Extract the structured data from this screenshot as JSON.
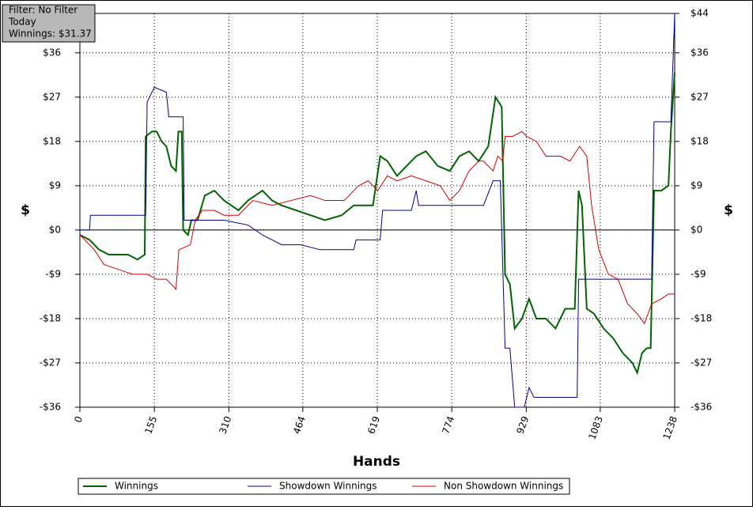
{
  "info_box": {
    "lines": [
      "Filter: No Filter",
      "Today",
      "Winnings: $31.37"
    ]
  },
  "chart_data": {
    "type": "line",
    "xlabel": "Hands",
    "ylabel": "$",
    "y2label": "$",
    "xlim": [
      0,
      1238
    ],
    "xticks": [
      0,
      155,
      310,
      464,
      619,
      774,
      929,
      1083,
      1238
    ],
    "ylim": [
      -36,
      44
    ],
    "yticks": [
      {
        "value": -36,
        "label": "-$36"
      },
      {
        "value": -27,
        "label": "-$27"
      },
      {
        "value": -18,
        "label": "-$18"
      },
      {
        "value": -9,
        "label": "-$9"
      },
      {
        "value": 0,
        "label": "$0"
      },
      {
        "value": 9,
        "label": "$9"
      },
      {
        "value": 18,
        "label": "$18"
      },
      {
        "value": 27,
        "label": "$27"
      },
      {
        "value": 36,
        "label": "$36"
      },
      {
        "value": 44,
        "label": "$44"
      }
    ],
    "grid": true,
    "legend": "bottom",
    "series": [
      {
        "name": "Winnings",
        "color": "#006400",
        "width": 2,
        "x": [
          0,
          20,
          40,
          60,
          80,
          100,
          120,
          135,
          137,
          150,
          160,
          170,
          180,
          190,
          200,
          205,
          212,
          215,
          225,
          232,
          245,
          260,
          280,
          300,
          330,
          350,
          380,
          400,
          420,
          450,
          480,
          510,
          545,
          570,
          590,
          610,
          625,
          640,
          660,
          680,
          700,
          720,
          745,
          770,
          790,
          810,
          830,
          850,
          865,
          878,
          885,
          895,
          905,
          920,
          935,
          950,
          970,
          990,
          1010,
          1030,
          1038,
          1045,
          1055,
          1070,
          1090,
          1110,
          1130,
          1150,
          1160,
          1170,
          1180,
          1188,
          1195,
          1210,
          1225,
          1230,
          1238
        ],
        "values": [
          -1,
          -2,
          -4,
          -5,
          -5,
          -5,
          -6,
          -5,
          19,
          20,
          20,
          18,
          17,
          13,
          12,
          20,
          20,
          0,
          -1,
          2,
          2,
          7,
          8,
          6,
          4,
          6,
          8,
          6,
          5,
          4,
          3,
          2,
          3,
          5,
          5,
          5,
          15,
          14,
          11,
          13,
          15,
          16,
          13,
          12,
          15,
          16,
          14,
          17,
          27,
          25,
          -9,
          -11,
          -20,
          -18,
          -14,
          -18,
          -18,
          -20,
          -16,
          -16,
          8,
          5,
          -16,
          -17,
          -20,
          -22,
          -25,
          -27,
          -29,
          -25,
          -24,
          -24,
          8,
          8,
          9,
          20,
          32
        ]
      },
      {
        "name": "Showdown Winnings",
        "color": "#00008b",
        "width": 1,
        "x": [
          0,
          20,
          22,
          137,
          140,
          155,
          180,
          185,
          215,
          217,
          260,
          300,
          350,
          380,
          420,
          460,
          500,
          540,
          570,
          575,
          625,
          630,
          690,
          700,
          705,
          840,
          860,
          875,
          885,
          895,
          905,
          925,
          935,
          945,
          1000,
          1035,
          1038,
          1190,
          1195,
          1230,
          1238
        ],
        "values": [
          0,
          0,
          3,
          3,
          26,
          29,
          28,
          23,
          23,
          2,
          2,
          2,
          1,
          -1,
          -3,
          -3,
          -4,
          -4,
          -4,
          -2,
          -2,
          4,
          4,
          8,
          5,
          5,
          10,
          10,
          -24,
          -24,
          -36,
          -36,
          -32,
          -34,
          -34,
          -34,
          -10,
          -10,
          22,
          22,
          44
        ]
      },
      {
        "name": "Non Showdown Winnings",
        "color": "#d00000",
        "width": 1,
        "x": [
          0,
          30,
          50,
          80,
          110,
          140,
          160,
          180,
          200,
          206,
          230,
          240,
          255,
          280,
          300,
          330,
          360,
          400,
          440,
          480,
          510,
          550,
          580,
          600,
          620,
          640,
          660,
          690,
          720,
          750,
          770,
          790,
          810,
          830,
          840,
          860,
          870,
          880,
          885,
          900,
          920,
          930,
          950,
          970,
          1000,
          1020,
          1040,
          1055,
          1065,
          1080,
          1100,
          1120,
          1140,
          1160,
          1175,
          1190,
          1210,
          1225,
          1238
        ],
        "values": [
          -1,
          -4,
          -7,
          -8,
          -9,
          -9,
          -10,
          -10,
          -12,
          -4,
          -3,
          2,
          4,
          4,
          3,
          3,
          6,
          5,
          6,
          7,
          6,
          6,
          9,
          10,
          8,
          11,
          10,
          11,
          10,
          9,
          6,
          8,
          12,
          14,
          14,
          12,
          15,
          14,
          19,
          19,
          20,
          19,
          18,
          15,
          15,
          14,
          17,
          15,
          5,
          -4,
          -9,
          -10,
          -15,
          -17,
          -19,
          -15,
          -14,
          -13,
          -13
        ]
      }
    ]
  }
}
